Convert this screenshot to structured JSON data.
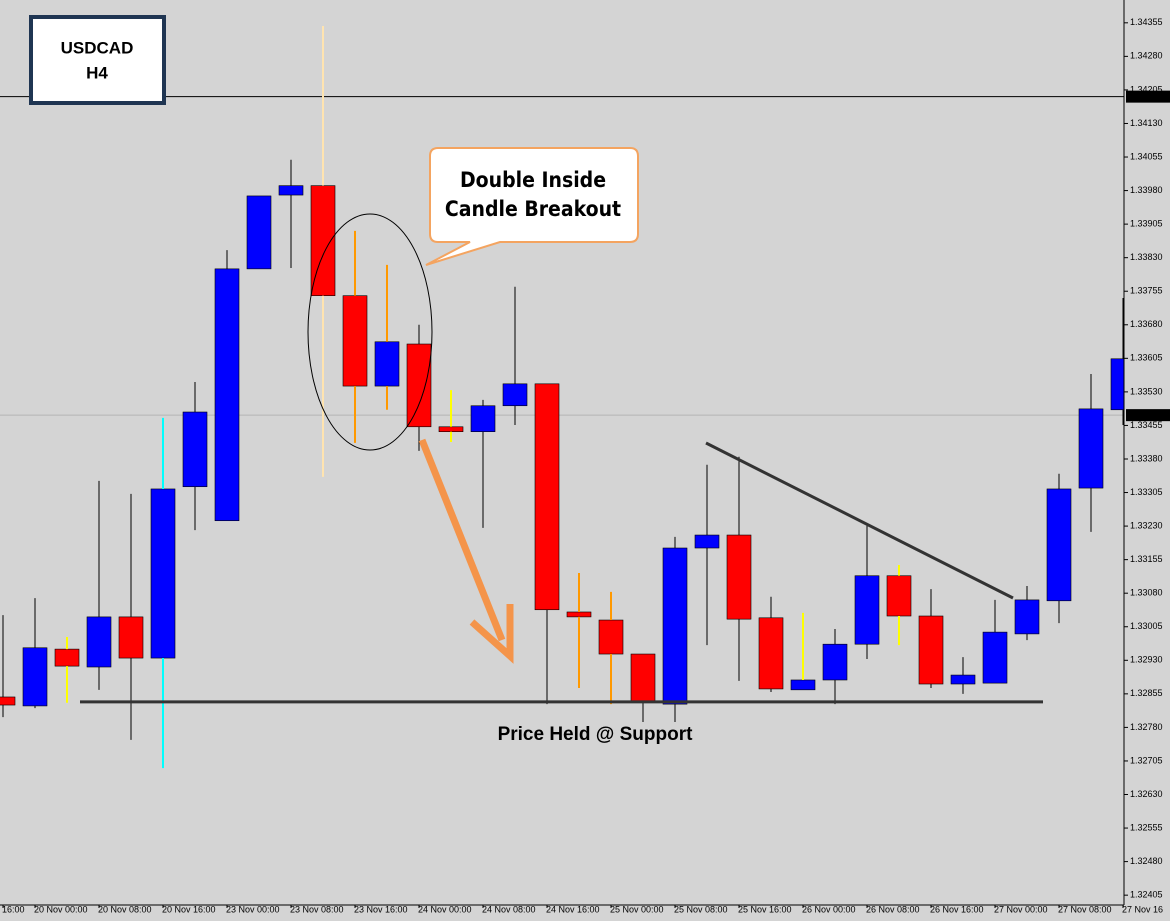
{
  "chart_data": {
    "type": "candlestick",
    "symbol": "USDCAD",
    "timeframe": "H4",
    "callout": [
      "Double Inside",
      "Candle Breakout"
    ],
    "categories": [
      "16:00",
      "20 Nov 00:00",
      null,
      "20 Nov 08:00",
      null,
      "20 Nov 16:00",
      null,
      "23 Nov 00:00",
      null,
      "23 Nov 08:00",
      null,
      "23 Nov 16:00",
      null,
      "24 Nov 00:00",
      null,
      "24 Nov 08:00",
      null,
      "24 Nov 16:00",
      null,
      "25 Nov 00:00",
      null,
      "25 Nov 08:00",
      null,
      "25 Nov 16:00",
      null,
      "26 Nov 00:00",
      null,
      "26 Nov 08:00",
      null,
      "26 Nov 16:00",
      null,
      "27 Nov 00:00",
      null,
      "27 Nov 08:00",
      null,
      "27 Nov 16"
    ],
    "open": [
      1.32848,
      1.32828,
      1.32955,
      1.32915,
      1.33027,
      1.32935,
      1.33318,
      1.33242,
      1.33805,
      1.3397,
      1.33991,
      1.33745,
      1.33543,
      1.33637,
      1.33452,
      1.33441,
      1.33499,
      1.33548,
      1.33038,
      1.3302,
      1.32944,
      1.32832,
      1.33181,
      1.3321,
      1.33025,
      1.32864,
      1.32886,
      1.32966,
      1.33119,
      1.33029,
      1.32877,
      1.32879,
      1.32989,
      1.33063,
      1.33315,
      1.3349
    ],
    "high": [
      1.33031,
      1.33069,
      1.32982,
      1.33331,
      1.33302,
      1.33472,
      1.33552,
      1.33847,
      1.33968,
      1.34049,
      1.34348,
      1.3389,
      1.33814,
      1.3368,
      1.33534,
      1.33512,
      1.33765,
      1.33548,
      1.33125,
      1.33083,
      1.32944,
      1.33206,
      1.33367,
      1.33385,
      1.33072,
      1.33036,
      1.33,
      1.33233,
      1.33143,
      1.33089,
      1.32937,
      1.33065,
      1.33096,
      1.33347,
      1.3357,
      1.3374
    ],
    "low": [
      1.32803,
      1.32823,
      1.32835,
      1.32864,
      1.32752,
      1.32689,
      1.33221,
      1.33242,
      1.33805,
      1.33807,
      1.3334,
      1.33416,
      1.3349,
      1.33398,
      1.33418,
      1.33226,
      1.33456,
      1.32832,
      1.32868,
      1.32832,
      1.32792,
      1.32792,
      1.32964,
      1.32884,
      1.32859,
      1.32864,
      1.32832,
      1.32933,
      1.32964,
      1.32868,
      1.32855,
      1.32879,
      1.32975,
      1.33013,
      1.33217,
      1.33456
    ],
    "close": [
      1.3283,
      1.32958,
      1.32917,
      1.33027,
      1.32935,
      1.33313,
      1.33485,
      1.33805,
      1.33968,
      1.33991,
      1.33745,
      1.33543,
      1.33642,
      1.33452,
      1.33441,
      1.33499,
      1.33548,
      1.33043,
      1.33027,
      1.32944,
      1.32837,
      1.33181,
      1.3321,
      1.33022,
      1.32866,
      1.32886,
      1.32966,
      1.33119,
      1.33029,
      1.32877,
      1.32897,
      1.32993,
      1.33065,
      1.33313,
      1.33492,
      1.33604
    ],
    "up_color": "#0000ff",
    "down_color": "#ff0000",
    "wick_colors": [
      "#000000",
      "#000000",
      "#ffff00",
      "#000000",
      "#000000",
      "#00ffff",
      "#000000",
      "#000000",
      "#000000",
      "#000000",
      "#ffe4b0",
      "#ff9900",
      "#ff9900",
      "#000000",
      "#ffff00",
      "#000000",
      "#000000",
      "#000000",
      "#ff9900",
      "#ff9900",
      "#000000",
      "#000000",
      "#000000",
      "#000000",
      "#000000",
      "#ffff00",
      "#000000",
      "#000000",
      "#ffff00",
      "#000000",
      "#000000",
      "#000000",
      "#000000",
      "#000000",
      "#000000",
      "#000000"
    ],
    "ylim": [
      1.32383,
      1.34406
    ],
    "yticks": [
      1.34355,
      {
        "value": 1.3428,
        "label": "1.34280"
      },
      1.34205,
      {
        "value": 1.3413,
        "label": "1.34130"
      },
      1.34055,
      {
        "value": 1.3398,
        "label": "1.33980"
      },
      1.33905,
      {
        "value": 1.3383,
        "label": "1.33830"
      },
      1.33755,
      {
        "value": 1.3368,
        "label": "1.33680"
      },
      1.33605,
      {
        "value": 1.3353,
        "label": "1.33530"
      },
      1.33455,
      {
        "value": 1.3338,
        "label": "1.33380"
      },
      1.33305,
      {
        "value": 1.3323,
        "label": "1.33230"
      },
      1.33155,
      {
        "value": 1.3308,
        "label": "1.33080"
      },
      1.33005,
      {
        "value": 1.3293,
        "label": "1.32930"
      },
      1.32855,
      {
        "value": 1.3278,
        "label": "1.32780"
      },
      1.32705,
      {
        "value": 1.3263,
        "label": "1.32630"
      },
      1.32555,
      {
        "value": 1.3248,
        "label": "1.32480"
      },
      1.32405
    ],
    "price_lines": [
      {
        "value": 1.3419,
        "label": "1.34190",
        "color": "#000000"
      },
      {
        "value": 1.33478,
        "label": "1.33478",
        "color": "#b4b4b4"
      }
    ],
    "support": {
      "value": 1.32837,
      "label": "Price Held @ Support"
    }
  }
}
